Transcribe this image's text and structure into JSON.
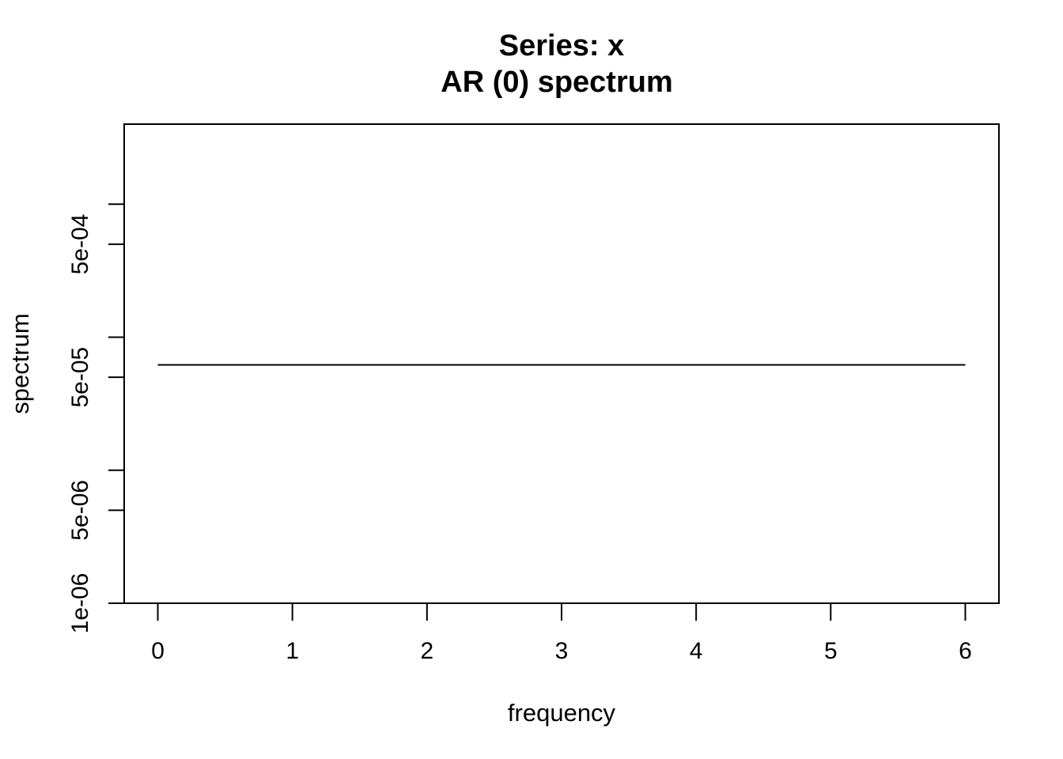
{
  "chart_data": {
    "type": "line",
    "title": "Series: x",
    "subtitle": "AR (0) spectrum",
    "xlabel": "frequency",
    "ylabel": "spectrum",
    "x_scale": "linear",
    "y_scale": "log",
    "xlim": [
      -0.25,
      6.25
    ],
    "ylim": [
      1e-06,
      0.004
    ],
    "x_ticks": [
      0,
      1,
      2,
      3,
      4,
      5,
      6
    ],
    "x_tick_labels": [
      "0",
      "1",
      "2",
      "3",
      "4",
      "5",
      "6"
    ],
    "y_labeled_ticks": [
      1e-06,
      5e-06,
      5e-05,
      0.0005
    ],
    "y_tick_labels": [
      "1e-06",
      "5e-06",
      "5e-05",
      "5e-04"
    ],
    "y_minor_ticks": [
      1e-05,
      0.0001,
      0.001
    ],
    "grid": false,
    "series": [
      {
        "x": [
          0,
          6
        ],
        "y": [
          6.2e-05,
          6.2e-05
        ]
      }
    ]
  }
}
